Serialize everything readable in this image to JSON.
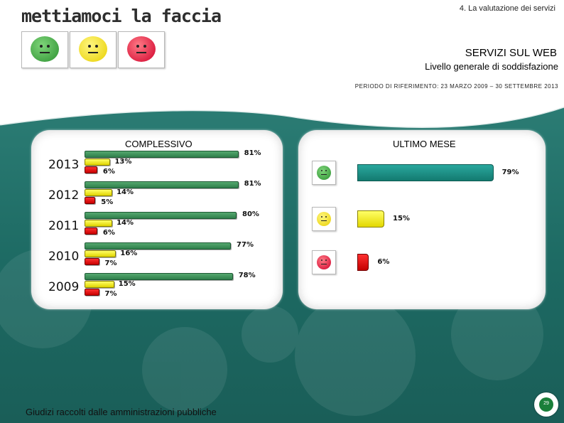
{
  "header": {
    "logo_text": "mettiamoci la faccia",
    "page_section": "4. La valutazione dei servizi",
    "title": "SERVIZI SUL WEB",
    "subtitle": "Livello generale di soddisfazione",
    "period": "PERIODO DI RIFERIMENTO: 23 MARZO 2009 – 30 SETTEMBRE 2013"
  },
  "icons": [
    "happy-face-icon",
    "neutral-face-icon",
    "sad-face-icon"
  ],
  "colors": {
    "positive": "#2f7f4b",
    "neutral": "#f0e400",
    "negative": "#d40000",
    "teal": "#1a8a80",
    "background_band": "#1f6f6a"
  },
  "chart_data": [
    {
      "type": "bar",
      "title": "COMPLESSIVO",
      "orientation": "horizontal",
      "categories": [
        "2013",
        "2012",
        "2011",
        "2010",
        "2009"
      ],
      "series": [
        {
          "values": [
            81,
            81,
            80,
            77,
            78
          ]
        },
        {
          "values": [
            13,
            14,
            14,
            16,
            15
          ]
        },
        {
          "values": [
            6,
            5,
            6,
            7,
            7
          ]
        }
      ],
      "labels": [
        [
          "81%",
          "81%",
          "80%",
          "77%",
          "78%"
        ],
        [
          "13%",
          "14%",
          "14%",
          "16%",
          "15%"
        ],
        [
          "6%",
          "5%",
          "6%",
          "7%",
          "7%"
        ]
      ]
    },
    {
      "type": "bar",
      "title": "ULTIMO MESE",
      "orientation": "horizontal",
      "categories": [
        "happy-face-icon",
        "neutral-face-icon",
        "sad-face-icon"
      ],
      "values": [
        79,
        15,
        6
      ],
      "labels": [
        "79%",
        "15%",
        "6%"
      ]
    }
  ],
  "footer": {
    "text": "Giudizi raccolti dalle amministrazioni pubbliche",
    "page_number": "29"
  }
}
